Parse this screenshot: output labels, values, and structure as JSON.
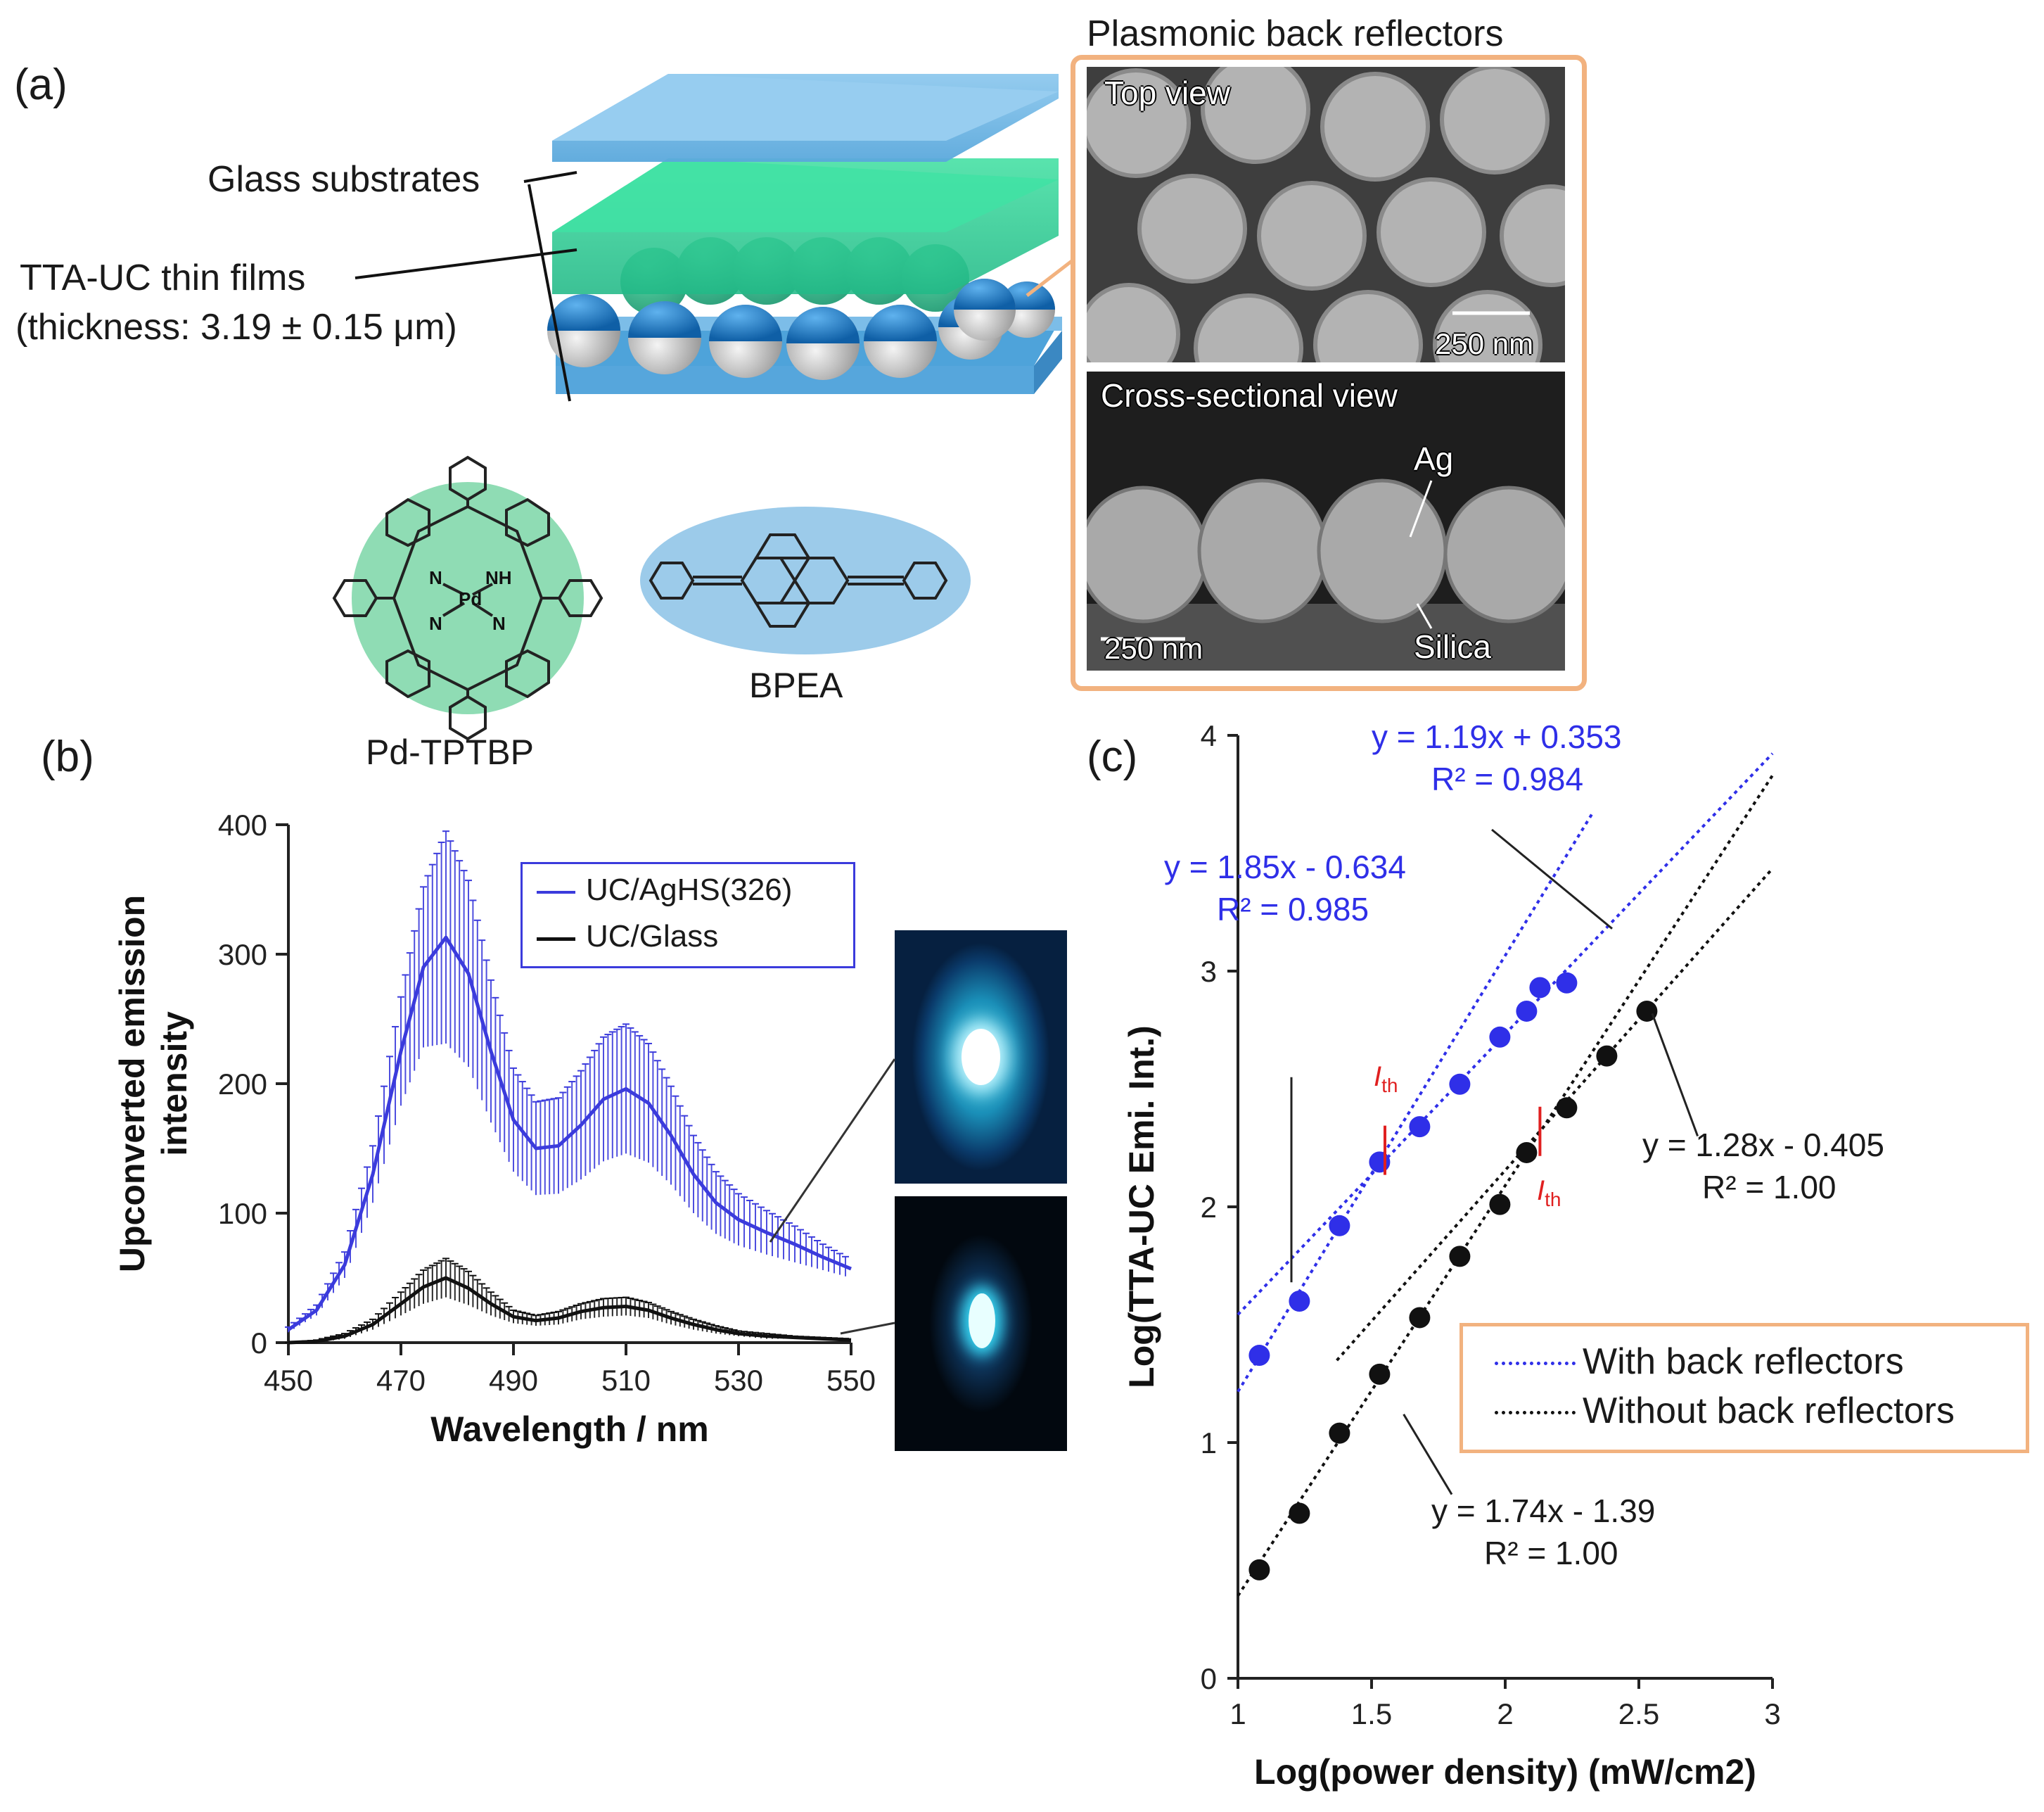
{
  "panel_a": {
    "label": "(a)",
    "glass_label": "Glass substrates",
    "film_label": "TTA-UC thin films",
    "thickness_label": "(thickness: 3.19 ± 0.15 μm)",
    "reflector_title": "Plasmonic back reflectors",
    "top_view": {
      "header": "Top view",
      "scale": "250 nm"
    },
    "cross_view": {
      "header": "Cross-sectional view",
      "scale": "250 nm",
      "ag_label": "Ag",
      "silica_label": "Silica"
    },
    "molecule_1": "Pd-TPTBP",
    "molecule_2": "BPEA",
    "porphyrin_atoms": {
      "n_tl": "N",
      "nh": "NH",
      "pd": "Pd",
      "n_bl": "N",
      "n_br": "N"
    },
    "colors": {
      "glass": "#6fb6e4",
      "film": "#3ed99a",
      "sphere_top": "#1f7fc8",
      "sphere_bottom": "#d8d8d8",
      "frame": "#f2b27f",
      "porphyrin_bg": "#8fdcb4",
      "bpea_bg": "#9ccbea"
    }
  },
  "panel_b": {
    "label": "(b)",
    "legend": [
      {
        "name": "UC/AgHS(326)",
        "color": "#3b3bdc"
      },
      {
        "name": "UC/Glass",
        "color": "#111111"
      }
    ],
    "image_icons": [
      "bright-emission-spot",
      "dim-emission-spot"
    ]
  },
  "panel_c": {
    "label": "(c)",
    "legend": [
      {
        "name": "With back reflectors",
        "color": "#2f2fe8"
      },
      {
        "name": "Without back reflectors",
        "color": "#111111"
      }
    ],
    "equations": {
      "blue_high": [
        "y = 1.19x + 0.353",
        "R² = 0.984"
      ],
      "blue_low": [
        "y = 1.85x - 0.634",
        "R² = 0.985"
      ],
      "black_high": [
        "y = 1.28x - 0.405",
        "R² = 1.00"
      ],
      "black_low": [
        "y = 1.74x - 1.39",
        "R² = 1.00"
      ]
    },
    "ith_label": "I",
    "ith_sub": "th"
  },
  "chart_data": [
    {
      "type": "line",
      "title": "",
      "xlabel": "Wavelength / nm",
      "ylabel": "Upconverted emission intensity",
      "xlim": [
        450,
        550
      ],
      "ylim": [
        0,
        400
      ],
      "x_ticks": [
        450,
        470,
        490,
        510,
        530,
        550
      ],
      "y_ticks": [
        0,
        100,
        200,
        300,
        400
      ],
      "x": [
        450,
        455,
        460,
        465,
        470,
        474,
        478,
        482,
        486,
        490,
        494,
        498,
        502,
        506,
        510,
        514,
        518,
        522,
        526,
        530,
        535,
        540,
        545,
        550
      ],
      "series": [
        {
          "name": "UC/AgHS(326)",
          "color": "#3b3bdc",
          "values": [
            10,
            25,
            60,
            130,
            225,
            290,
            313,
            285,
            225,
            172,
            150,
            152,
            168,
            188,
            196,
            185,
            160,
            130,
            108,
            95,
            85,
            76,
            66,
            57
          ],
          "error": [
            2,
            4,
            10,
            22,
            42,
            62,
            82,
            72,
            55,
            40,
            36,
            37,
            42,
            48,
            50,
            46,
            38,
            30,
            24,
            20,
            17,
            14,
            10,
            7
          ]
        },
        {
          "name": "UC/Glass",
          "color": "#111111",
          "values": [
            0,
            1,
            5,
            14,
            30,
            43,
            50,
            42,
            30,
            20,
            17,
            19,
            24,
            27,
            28,
            25,
            19,
            14,
            10,
            7,
            5,
            4,
            3,
            2
          ],
          "error": [
            0,
            1,
            2,
            4,
            9,
            13,
            15,
            13,
            9,
            5,
            4,
            5,
            6,
            7,
            7,
            6,
            5,
            4,
            3,
            2,
            2,
            1,
            1,
            1
          ]
        }
      ]
    },
    {
      "type": "scatter",
      "title": "",
      "xlabel": "Log(power density) (mW/cm2)",
      "ylabel": "Log(TTA-UC Emi. Int.)",
      "xlim": [
        1,
        3
      ],
      "ylim": [
        0,
        4
      ],
      "x_ticks": [
        1,
        1.5,
        2,
        2.5,
        3
      ],
      "x_tick_labels": [
        "1",
        "1.5",
        "2",
        "2.5",
        "3"
      ],
      "y_ticks": [
        0,
        1,
        2,
        3,
        4
      ],
      "legend_position": "lower-right",
      "series": [
        {
          "name": "With back reflectors",
          "color": "#2f2fe8",
          "x": [
            1.08,
            1.23,
            1.38,
            1.53,
            1.68,
            1.83,
            1.98,
            2.08,
            2.13,
            2.23
          ],
          "y": [
            1.37,
            1.6,
            1.92,
            2.19,
            2.34,
            2.52,
            2.72,
            2.83,
            2.93,
            2.95
          ]
        },
        {
          "name": "Without back reflectors",
          "color": "#111111",
          "x": [
            1.08,
            1.23,
            1.38,
            1.53,
            1.68,
            1.83,
            1.98,
            2.08,
            2.23,
            2.38,
            2.53
          ],
          "y": [
            0.46,
            0.7,
            1.04,
            1.29,
            1.53,
            1.79,
            2.01,
            2.23,
            2.42,
            2.64,
            2.83
          ]
        }
      ],
      "fit_lines": [
        {
          "series": "With back reflectors",
          "slope": 1.85,
          "intercept": -0.634,
          "x_range": [
            1.0,
            2.33
          ]
        },
        {
          "series": "With back reflectors",
          "slope": 1.19,
          "intercept": 0.353,
          "x_range": [
            1.0,
            3.0
          ]
        },
        {
          "series": "Without back reflectors",
          "slope": 1.74,
          "intercept": -1.39,
          "x_range": [
            1.0,
            3.0
          ]
        },
        {
          "series": "Without back reflectors",
          "slope": 1.28,
          "intercept": -0.405,
          "x_range": [
            1.37,
            3.0
          ]
        }
      ],
      "thresholds": [
        {
          "series": "With back reflectors",
          "x": 1.55,
          "y": 2.24
        },
        {
          "series": "Without back reflectors",
          "x": 2.13,
          "y": 2.32
        }
      ]
    }
  ]
}
